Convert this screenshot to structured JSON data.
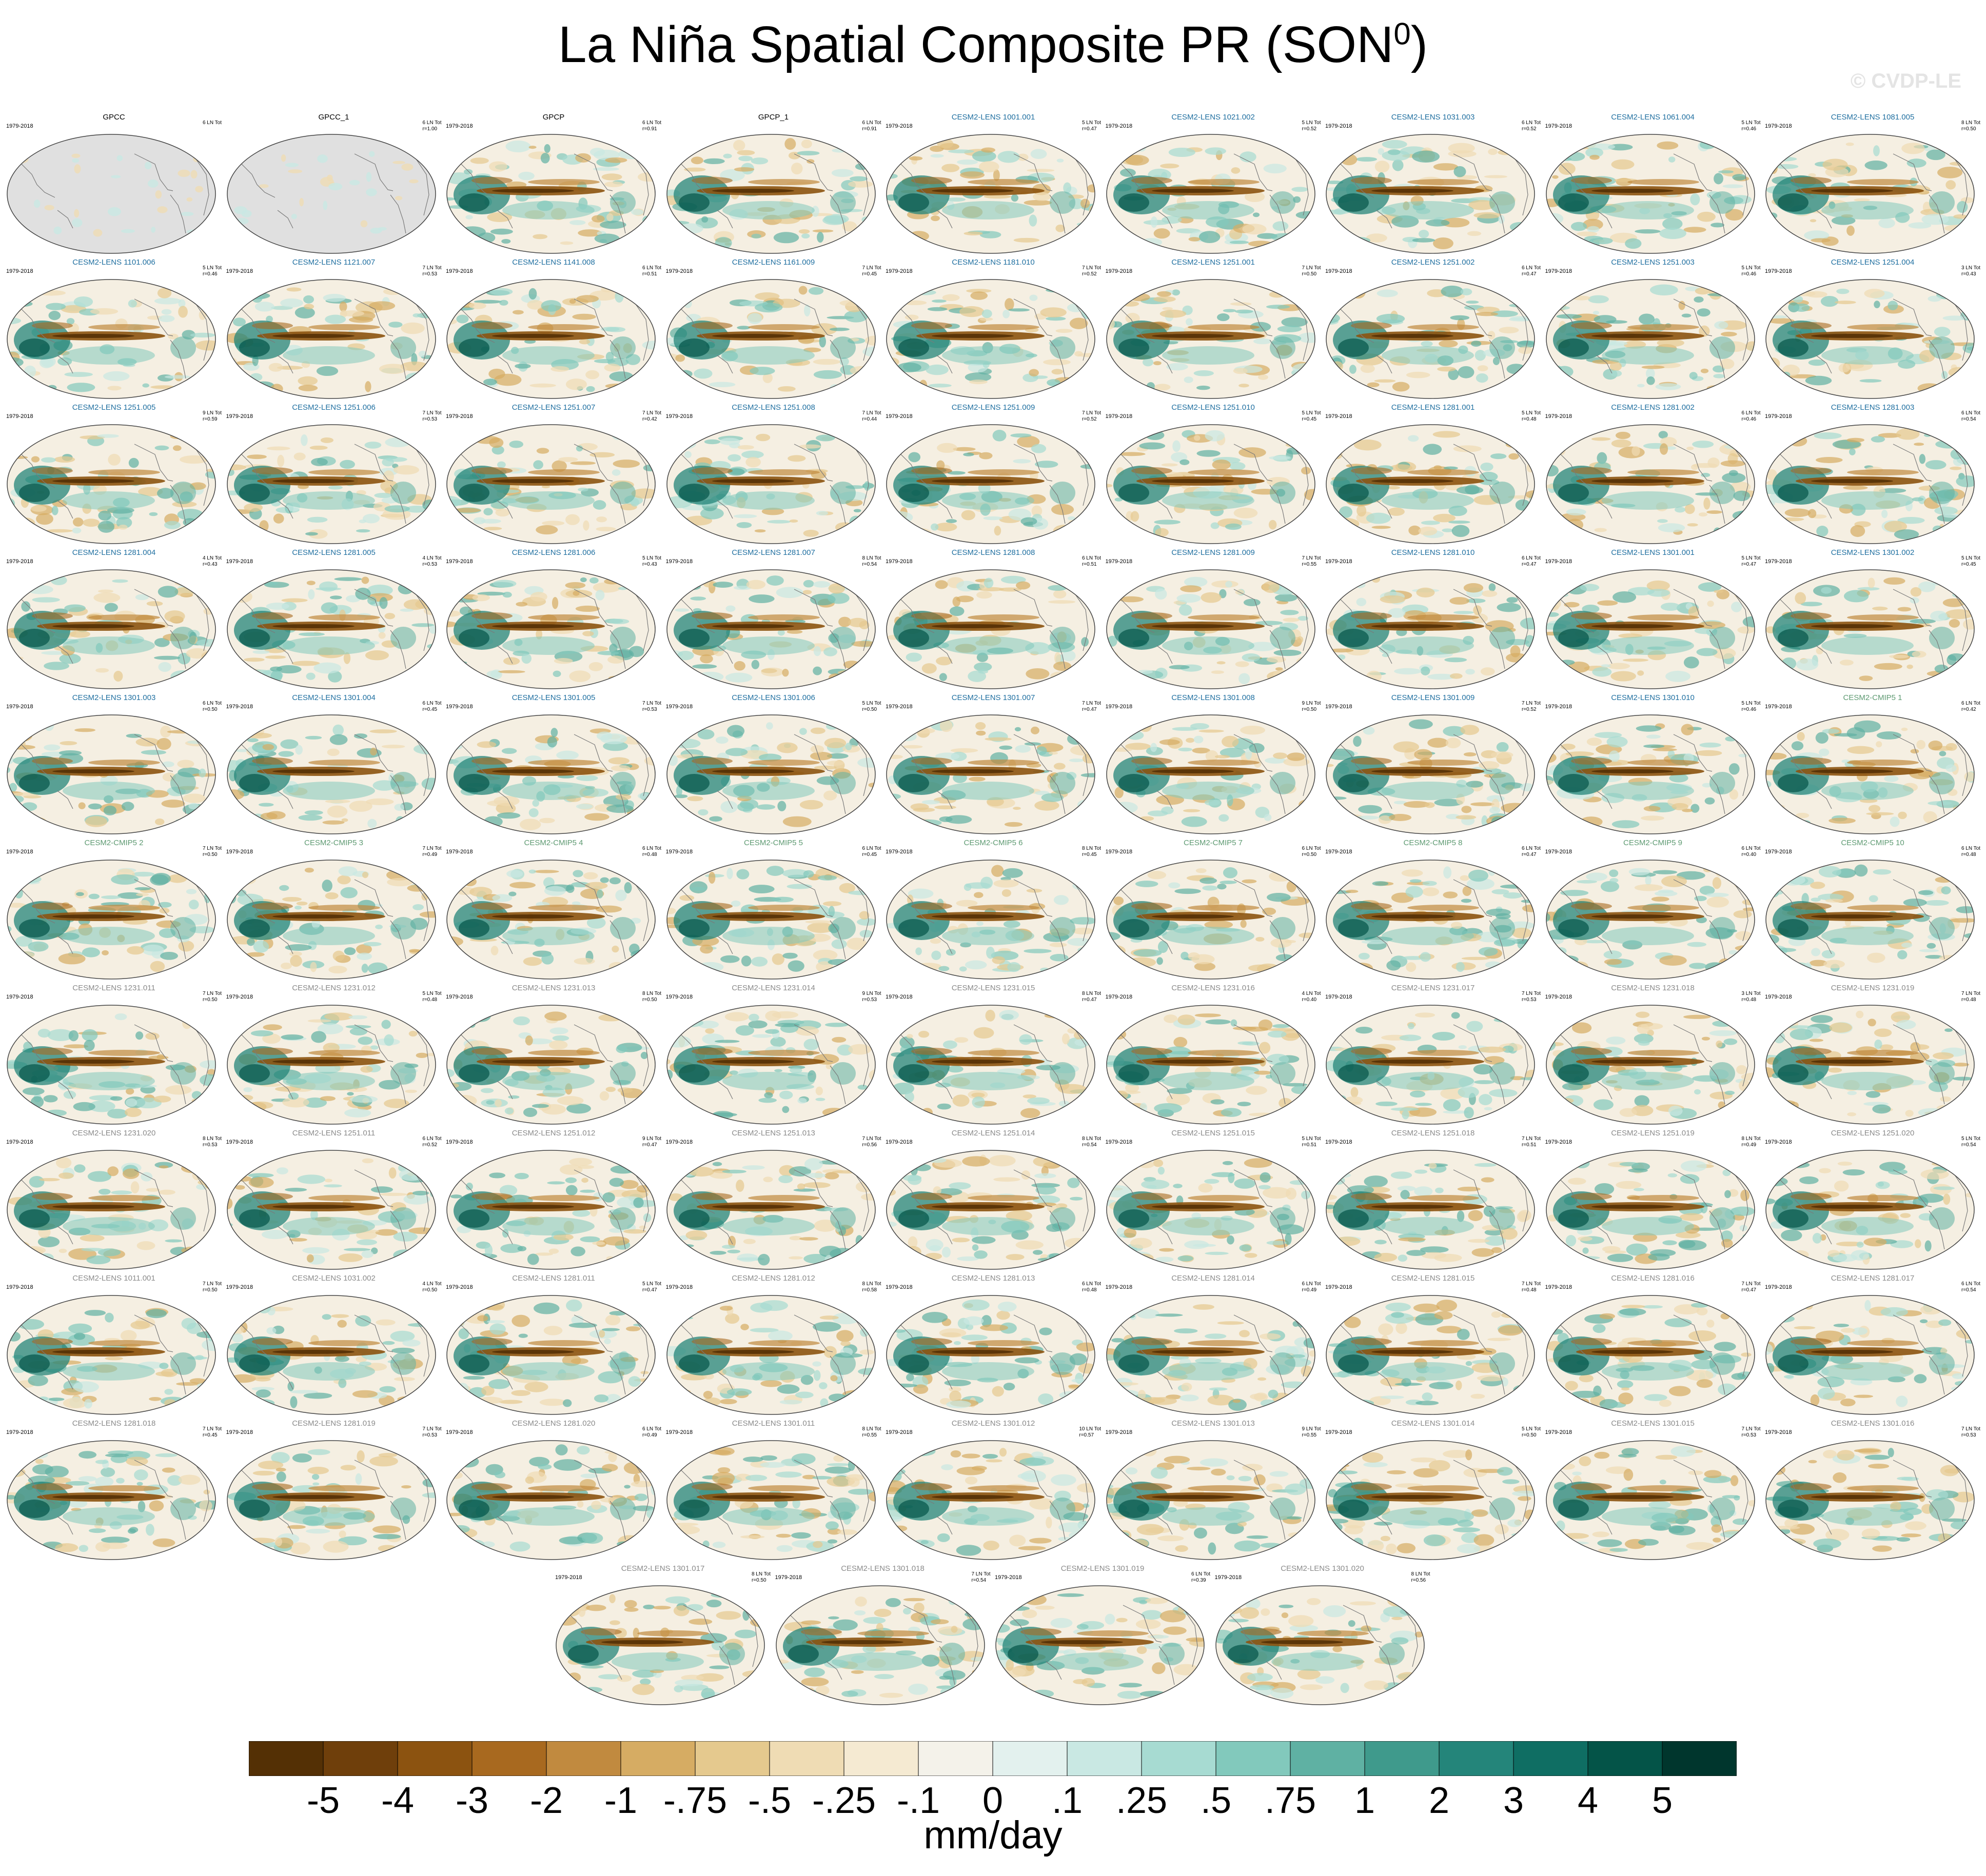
{
  "title": "La Niña Spatial Composite PR (SON",
  "title_superscript": "0",
  "title_close": ")",
  "watermark": "© CVDP-LE",
  "colors": {
    "obs_label": "#000000",
    "group1_label": "#1f6fa0",
    "group2_label": "#5e9a72",
    "group3_label": "#8a8a8a",
    "land_fill": "#e0e0e0",
    "ocean_fill": "#f5efe2",
    "coast": "#7a7a7a"
  },
  "chart_data": {
    "type": "heatmap",
    "variable": "PR",
    "season": "SON",
    "units": "mm/day",
    "colorbar": {
      "labels": [
        "-5",
        "-4",
        "-3",
        "-2",
        "-1",
        "-.75",
        "-.5",
        "-.25",
        "-.1",
        "0",
        ".1",
        ".25",
        ".5",
        ".75",
        "1",
        "2",
        "3",
        "4",
        "5"
      ],
      "colors": [
        "#543005",
        "#6f3f0b",
        "#8c5310",
        "#a8691f",
        "#c18a3f",
        "#d6ac63",
        "#e5c98e",
        "#efdcb4",
        "#f5ead2",
        "#f4f2ea",
        "#e3f1ee",
        "#c9e8e3",
        "#a7dbd2",
        "#82c9bc",
        "#5fb1a3",
        "#3f9a8c",
        "#24857a",
        "#0f6e63",
        "#045448",
        "#00362d"
      ]
    },
    "panels": [
      {
        "name": "GPCC",
        "years": "1979-2018",
        "lnt": "6 LN Tot",
        "r": "",
        "group": "obs",
        "land_only": true
      },
      {
        "name": "GPCC_1",
        "years": "",
        "lnt": "6 LN Tot",
        "r": "r=1.00",
        "group": "obs",
        "land_only": true
      },
      {
        "name": "GPCP",
        "years": "1979-2018",
        "lnt": "6 LN Tot",
        "r": "r=0.91",
        "group": "obs"
      },
      {
        "name": "GPCP_1",
        "years": "",
        "lnt": "6 LN Tot",
        "r": "r=0.91",
        "group": "obs"
      },
      {
        "name": "CESM2-LENS 1001.001",
        "years": "1979-2018",
        "lnt": "5 LN Tot",
        "r": "r=0.47",
        "group": "g1"
      },
      {
        "name": "CESM2-LENS 1021.002",
        "years": "1979-2018",
        "lnt": "5 LN Tot",
        "r": "r=0.52",
        "group": "g1"
      },
      {
        "name": "CESM2-LENS 1031.003",
        "years": "1979-2018",
        "lnt": "6 LN Tot",
        "r": "r=0.52",
        "group": "g1"
      },
      {
        "name": "CESM2-LENS 1061.004",
        "years": "1979-2018",
        "lnt": "5 LN Tot",
        "r": "r=0.46",
        "group": "g1"
      },
      {
        "name": "CESM2-LENS 1081.005",
        "years": "1979-2018",
        "lnt": "8 LN Tot",
        "r": "r=0.50",
        "group": "g1"
      },
      {
        "name": "CESM2-LENS 1101.006",
        "years": "1979-2018",
        "lnt": "5 LN Tot",
        "r": "r=0.46",
        "group": "g1"
      },
      {
        "name": "CESM2-LENS 1121.007",
        "years": "1979-2018",
        "lnt": "7 LN Tot",
        "r": "r=0.53",
        "group": "g1"
      },
      {
        "name": "CESM2-LENS 1141.008",
        "years": "1979-2018",
        "lnt": "6 LN Tot",
        "r": "r=0.51",
        "group": "g1"
      },
      {
        "name": "CESM2-LENS 1161.009",
        "years": "1979-2018",
        "lnt": "7 LN Tot",
        "r": "r=0.45",
        "group": "g1"
      },
      {
        "name": "CESM2-LENS 1181.010",
        "years": "1979-2018",
        "lnt": "7 LN Tot",
        "r": "r=0.52",
        "group": "g1"
      },
      {
        "name": "CESM2-LENS 1251.001",
        "years": "1979-2018",
        "lnt": "7 LN Tot",
        "r": "r=0.50",
        "group": "g1"
      },
      {
        "name": "CESM2-LENS 1251.002",
        "years": "1979-2018",
        "lnt": "6 LN Tot",
        "r": "r=0.47",
        "group": "g1"
      },
      {
        "name": "CESM2-LENS 1251.003",
        "years": "1979-2018",
        "lnt": "5 LN Tot",
        "r": "r=0.46",
        "group": "g1"
      },
      {
        "name": "CESM2-LENS 1251.004",
        "years": "1979-2018",
        "lnt": "3 LN Tot",
        "r": "r=0.43",
        "group": "g1"
      },
      {
        "name": "CESM2-LENS 1251.005",
        "years": "1979-2018",
        "lnt": "9 LN Tot",
        "r": "r=0.59",
        "group": "g1"
      },
      {
        "name": "CESM2-LENS 1251.006",
        "years": "1979-2018",
        "lnt": "7 LN Tot",
        "r": "r=0.53",
        "group": "g1"
      },
      {
        "name": "CESM2-LENS 1251.007",
        "years": "1979-2018",
        "lnt": "7 LN Tot",
        "r": "r=0.42",
        "group": "g1"
      },
      {
        "name": "CESM2-LENS 1251.008",
        "years": "1979-2018",
        "lnt": "7 LN Tot",
        "r": "r=0.44",
        "group": "g1"
      },
      {
        "name": "CESM2-LENS 1251.009",
        "years": "1979-2018",
        "lnt": "7 LN Tot",
        "r": "r=0.52",
        "group": "g1"
      },
      {
        "name": "CESM2-LENS 1251.010",
        "years": "1979-2018",
        "lnt": "5 LN Tot",
        "r": "r=0.45",
        "group": "g1"
      },
      {
        "name": "CESM2-LENS 1281.001",
        "years": "1979-2018",
        "lnt": "5 LN Tot",
        "r": "r=0.48",
        "group": "g1"
      },
      {
        "name": "CESM2-LENS 1281.002",
        "years": "1979-2018",
        "lnt": "6 LN Tot",
        "r": "r=0.46",
        "group": "g1"
      },
      {
        "name": "CESM2-LENS 1281.003",
        "years": "1979-2018",
        "lnt": "6 LN Tot",
        "r": "r=0.54",
        "group": "g1"
      },
      {
        "name": "CESM2-LENS 1281.004",
        "years": "1979-2018",
        "lnt": "4 LN Tot",
        "r": "r=0.43",
        "group": "g1"
      },
      {
        "name": "CESM2-LENS 1281.005",
        "years": "1979-2018",
        "lnt": "4 LN Tot",
        "r": "r=0.53",
        "group": "g1"
      },
      {
        "name": "CESM2-LENS 1281.006",
        "years": "1979-2018",
        "lnt": "5 LN Tot",
        "r": "r=0.43",
        "group": "g1"
      },
      {
        "name": "CESM2-LENS 1281.007",
        "years": "1979-2018",
        "lnt": "8 LN Tot",
        "r": "r=0.54",
        "group": "g1"
      },
      {
        "name": "CESM2-LENS 1281.008",
        "years": "1979-2018",
        "lnt": "6 LN Tot",
        "r": "r=0.51",
        "group": "g1"
      },
      {
        "name": "CESM2-LENS 1281.009",
        "years": "1979-2018",
        "lnt": "7 LN Tot",
        "r": "r=0.55",
        "group": "g1"
      },
      {
        "name": "CESM2-LENS 1281.010",
        "years": "1979-2018",
        "lnt": "6 LN Tot",
        "r": "r=0.47",
        "group": "g1"
      },
      {
        "name": "CESM2-LENS 1301.001",
        "years": "1979-2018",
        "lnt": "5 LN Tot",
        "r": "r=0.47",
        "group": "g1"
      },
      {
        "name": "CESM2-LENS 1301.002",
        "years": "1979-2018",
        "lnt": "5 LN Tot",
        "r": "r=0.45",
        "group": "g1"
      },
      {
        "name": "CESM2-LENS 1301.003",
        "years": "1979-2018",
        "lnt": "6 LN Tot",
        "r": "r=0.50",
        "group": "g1"
      },
      {
        "name": "CESM2-LENS 1301.004",
        "years": "1979-2018",
        "lnt": "6 LN Tot",
        "r": "r=0.45",
        "group": "g1"
      },
      {
        "name": "CESM2-LENS 1301.005",
        "years": "1979-2018",
        "lnt": "7 LN Tot",
        "r": "r=0.53",
        "group": "g1"
      },
      {
        "name": "CESM2-LENS 1301.006",
        "years": "1979-2018",
        "lnt": "5 LN Tot",
        "r": "r=0.50",
        "group": "g1"
      },
      {
        "name": "CESM2-LENS 1301.007",
        "years": "1979-2018",
        "lnt": "7 LN Tot",
        "r": "r=0.47",
        "group": "g1"
      },
      {
        "name": "CESM2-LENS 1301.008",
        "years": "1979-2018",
        "lnt": "9 LN Tot",
        "r": "r=0.50",
        "group": "g1"
      },
      {
        "name": "CESM2-LENS 1301.009",
        "years": "1979-2018",
        "lnt": "7 LN Tot",
        "r": "r=0.52",
        "group": "g1"
      },
      {
        "name": "CESM2-LENS 1301.010",
        "years": "1979-2018",
        "lnt": "5 LN Tot",
        "r": "r=0.46",
        "group": "g1"
      },
      {
        "name": "CESM2-CMIP5 1",
        "years": "1979-2018",
        "lnt": "6 LN Tot",
        "r": "r=0.42",
        "group": "g2"
      },
      {
        "name": "CESM2-CMIP5 2",
        "years": "1979-2018",
        "lnt": "7 LN Tot",
        "r": "r=0.50",
        "group": "g2"
      },
      {
        "name": "CESM2-CMIP5 3",
        "years": "1979-2018",
        "lnt": "7 LN Tot",
        "r": "r=0.49",
        "group": "g2"
      },
      {
        "name": "CESM2-CMIP5 4",
        "years": "1979-2018",
        "lnt": "6 LN Tot",
        "r": "r=0.48",
        "group": "g2"
      },
      {
        "name": "CESM2-CMIP5 5",
        "years": "1979-2018",
        "lnt": "6 LN Tot",
        "r": "r=0.45",
        "group": "g2"
      },
      {
        "name": "CESM2-CMIP5 6",
        "years": "1979-2018",
        "lnt": "8 LN Tot",
        "r": "r=0.45",
        "group": "g2"
      },
      {
        "name": "CESM2-CMIP5 7",
        "years": "1979-2018",
        "lnt": "6 LN Tot",
        "r": "r=0.50",
        "group": "g2"
      },
      {
        "name": "CESM2-CMIP5 8",
        "years": "1979-2018",
        "lnt": "6 LN Tot",
        "r": "r=0.47",
        "group": "g2"
      },
      {
        "name": "CESM2-CMIP5 9",
        "years": "1979-2018",
        "lnt": "6 LN Tot",
        "r": "r=0.40",
        "group": "g2"
      },
      {
        "name": "CESM2-CMIP5 10",
        "years": "1979-2018",
        "lnt": "6 LN Tot",
        "r": "r=0.48",
        "group": "g2"
      },
      {
        "name": "CESM2-LENS 1231.011",
        "years": "1979-2018",
        "lnt": "7 LN Tot",
        "r": "r=0.50",
        "group": "g3"
      },
      {
        "name": "CESM2-LENS 1231.012",
        "years": "1979-2018",
        "lnt": "5 LN Tot",
        "r": "r=0.48",
        "group": "g3"
      },
      {
        "name": "CESM2-LENS 1231.013",
        "years": "1979-2018",
        "lnt": "8 LN Tot",
        "r": "r=0.50",
        "group": "g3"
      },
      {
        "name": "CESM2-LENS 1231.014",
        "years": "1979-2018",
        "lnt": "9 LN Tot",
        "r": "r=0.53",
        "group": "g3"
      },
      {
        "name": "CESM2-LENS 1231.015",
        "years": "1979-2018",
        "lnt": "8 LN Tot",
        "r": "r=0.47",
        "group": "g3"
      },
      {
        "name": "CESM2-LENS 1231.016",
        "years": "1979-2018",
        "lnt": "4 LN Tot",
        "r": "r=0.40",
        "group": "g3"
      },
      {
        "name": "CESM2-LENS 1231.017",
        "years": "1979-2018",
        "lnt": "7 LN Tot",
        "r": "r=0.53",
        "group": "g3"
      },
      {
        "name": "CESM2-LENS 1231.018",
        "years": "1979-2018",
        "lnt": "3 LN Tot",
        "r": "r=0.48",
        "group": "g3"
      },
      {
        "name": "CESM2-LENS 1231.019",
        "years": "1979-2018",
        "lnt": "7 LN Tot",
        "r": "r=0.48",
        "group": "g3"
      },
      {
        "name": "CESM2-LENS 1231.020",
        "years": "1979-2018",
        "lnt": "8 LN Tot",
        "r": "r=0.53",
        "group": "g3"
      },
      {
        "name": "CESM2-LENS 1251.011",
        "years": "1979-2018",
        "lnt": "6 LN Tot",
        "r": "r=0.52",
        "group": "g3"
      },
      {
        "name": "CESM2-LENS 1251.012",
        "years": "1979-2018",
        "lnt": "9 LN Tot",
        "r": "r=0.47",
        "group": "g3"
      },
      {
        "name": "CESM2-LENS 1251.013",
        "years": "1979-2018",
        "lnt": "7 LN Tot",
        "r": "r=0.56",
        "group": "g3"
      },
      {
        "name": "CESM2-LENS 1251.014",
        "years": "1979-2018",
        "lnt": "8 LN Tot",
        "r": "r=0.54",
        "group": "g3"
      },
      {
        "name": "CESM2-LENS 1251.015",
        "years": "1979-2018",
        "lnt": "5 LN Tot",
        "r": "r=0.51",
        "group": "g3"
      },
      {
        "name": "CESM2-LENS 1251.018",
        "years": "1979-2018",
        "lnt": "7 LN Tot",
        "r": "r=0.51",
        "group": "g3"
      },
      {
        "name": "CESM2-LENS 1251.019",
        "years": "1979-2018",
        "lnt": "8 LN Tot",
        "r": "r=0.49",
        "group": "g3"
      },
      {
        "name": "CESM2-LENS 1251.020",
        "years": "1979-2018",
        "lnt": "5 LN Tot",
        "r": "r=0.54",
        "group": "g3"
      },
      {
        "name": "CESM2-LENS 1011.001",
        "years": "1979-2018",
        "lnt": "7 LN Tot",
        "r": "r=0.50",
        "group": "g3"
      },
      {
        "name": "CESM2-LENS 1031.002",
        "years": "1979-2018",
        "lnt": "4 LN Tot",
        "r": "r=0.50",
        "group": "g3"
      },
      {
        "name": "CESM2-LENS 1281.011",
        "years": "1979-2018",
        "lnt": "5 LN Tot",
        "r": "r=0.47",
        "group": "g3"
      },
      {
        "name": "CESM2-LENS 1281.012",
        "years": "1979-2018",
        "lnt": "8 LN Tot",
        "r": "r=0.58",
        "group": "g3"
      },
      {
        "name": "CESM2-LENS 1281.013",
        "years": "1979-2018",
        "lnt": "6 LN Tot",
        "r": "r=0.48",
        "group": "g3"
      },
      {
        "name": "CESM2-LENS 1281.014",
        "years": "1979-2018",
        "lnt": "6 LN Tot",
        "r": "r=0.49",
        "group": "g3"
      },
      {
        "name": "CESM2-LENS 1281.015",
        "years": "1979-2018",
        "lnt": "7 LN Tot",
        "r": "r=0.48",
        "group": "g3"
      },
      {
        "name": "CESM2-LENS 1281.016",
        "years": "1979-2018",
        "lnt": "7 LN Tot",
        "r": "r=0.47",
        "group": "g3"
      },
      {
        "name": "CESM2-LENS 1281.017",
        "years": "1979-2018",
        "lnt": "6 LN Tot",
        "r": "r=0.54",
        "group": "g3"
      },
      {
        "name": "CESM2-LENS 1281.018",
        "years": "1979-2018",
        "lnt": "7 LN Tot",
        "r": "r=0.45",
        "group": "g3"
      },
      {
        "name": "CESM2-LENS 1281.019",
        "years": "1979-2018",
        "lnt": "7 LN Tot",
        "r": "r=0.53",
        "group": "g3"
      },
      {
        "name": "CESM2-LENS 1281.020",
        "years": "1979-2018",
        "lnt": "6 LN Tot",
        "r": "r=0.49",
        "group": "g3"
      },
      {
        "name": "CESM2-LENS 1301.011",
        "years": "1979-2018",
        "lnt": "8 LN Tot",
        "r": "r=0.55",
        "group": "g3"
      },
      {
        "name": "CESM2-LENS 1301.012",
        "years": "1979-2018",
        "lnt": "10 LN Tot",
        "r": "r=0.57",
        "group": "g3"
      },
      {
        "name": "CESM2-LENS 1301.013",
        "years": "1979-2018",
        "lnt": "9 LN Tot",
        "r": "r=0.55",
        "group": "g3"
      },
      {
        "name": "CESM2-LENS 1301.014",
        "years": "1979-2018",
        "lnt": "5 LN Tot",
        "r": "r=0.50",
        "group": "g3"
      },
      {
        "name": "CESM2-LENS 1301.015",
        "years": "1979-2018",
        "lnt": "7 LN Tot",
        "r": "r=0.53",
        "group": "g3"
      },
      {
        "name": "CESM2-LENS 1301.016",
        "years": "1979-2018",
        "lnt": "7 LN Tot",
        "r": "r=0.53",
        "group": "g3"
      },
      {
        "name": "CESM2-LENS 1301.017",
        "years": "1979-2018",
        "lnt": "8 LN Tot",
        "r": "r=0.50",
        "group": "g3"
      },
      {
        "name": "CESM2-LENS 1301.018",
        "years": "1979-2018",
        "lnt": "7 LN Tot",
        "r": "r=0.54",
        "group": "g3"
      },
      {
        "name": "CESM2-LENS 1301.019",
        "years": "1979-2018",
        "lnt": "6 LN Tot",
        "r": "r=0.39",
        "group": "g3"
      },
      {
        "name": "CESM2-LENS 1301.020",
        "years": "1979-2018",
        "lnt": "8 LN Tot",
        "r": "r=0.56",
        "group": "g3"
      }
    ]
  }
}
